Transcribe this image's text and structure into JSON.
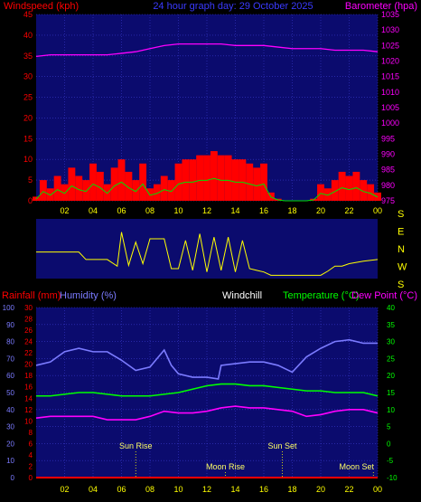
{
  "header": {
    "windspeed_label": "Windspeed (kph)",
    "title": "24 hour graph day: 29 October 2025",
    "barometer_label": "Barometer (hpa)"
  },
  "mid_header": {
    "rainfall_label": "Rainfall (mm)",
    "humidity_label": "Humidity (%)",
    "windchill_label": "Windchill",
    "temperature_label": "Temperature (°C)",
    "dewpoint_label": "Dew Point (°C)"
  },
  "colors": {
    "background": "#000000",
    "plot_background": "#0b0b6e",
    "grid": "#3a3acc",
    "wind_gust": "#ff0000",
    "wind_avg": "#00e000",
    "wind_lull": "#ffffff",
    "barometer": "#ff00ff",
    "wind_direction": "#ffff00",
    "humidity": "#7b7bff",
    "temperature": "#00ff00",
    "dew_point": "#ff00ff",
    "rainfall": "#ff0000",
    "left_axis": "#ff0000",
    "right_axis_top": "#ff00ff",
    "right_axis_bottom": "#00ff00",
    "humidity_axis": "#7b7bff",
    "x_ticks": "#ffff00",
    "events": "#ffff00"
  },
  "x_ticks": [
    "02",
    "04",
    "06",
    "08",
    "10",
    "12",
    "14",
    "16",
    "18",
    "20",
    "22",
    "00"
  ],
  "chart_data": [
    {
      "type": "area",
      "ylabel": "Windspeed (kph)",
      "y2label": "Barometer (hpa)",
      "ylim": [
        0,
        45
      ],
      "yticks": [
        0,
        5,
        10,
        15,
        20,
        25,
        30,
        35,
        40,
        45
      ],
      "y2lim": [
        975,
        1035
      ],
      "y2ticks": [
        975,
        980,
        985,
        990,
        995,
        1000,
        1005,
        1010,
        1015,
        1020,
        1025,
        1030,
        1035
      ],
      "xlim": [
        0,
        24
      ],
      "grid": true,
      "series": [
        {
          "name": "Windspeed (kph)",
          "axis": "left",
          "x": [
            0,
            0.5,
            1,
            1.5,
            2,
            2.5,
            3,
            3.5,
            4,
            4.5,
            5,
            5.5,
            6,
            6.5,
            7,
            7.5,
            8,
            8.5,
            9,
            9.5,
            10,
            10.5,
            11,
            11.5,
            12,
            12.5,
            13,
            13.5,
            14,
            14.5,
            15,
            15.5,
            16,
            16.5,
            17,
            17.5,
            18,
            18.5,
            19,
            19.5,
            20,
            20.5,
            21,
            21.5,
            22,
            22.5,
            23,
            23.5,
            24
          ],
          "values": [
            1,
            5,
            3,
            6,
            4,
            8,
            6,
            5,
            9,
            7,
            4,
            8,
            10,
            7,
            5,
            9,
            3,
            4,
            6,
            5,
            9,
            10,
            10,
            11,
            11,
            12,
            11,
            11,
            10,
            10,
            9,
            8,
            9,
            2,
            0.5,
            0,
            0,
            0,
            0,
            0.5,
            4,
            3,
            5,
            7,
            6,
            7,
            5,
            4,
            2
          ]
        },
        {
          "name": "Barometer (hpa)",
          "axis": "right",
          "x": [
            0,
            1,
            2,
            3,
            4,
            5,
            6,
            7,
            8,
            9,
            10,
            11,
            12,
            13,
            14,
            15,
            16,
            17,
            18,
            19,
            20,
            21,
            22,
            23,
            24
          ],
          "values": [
            1021.5,
            1022,
            1022,
            1022,
            1022,
            1022,
            1022.5,
            1023,
            1024,
            1025,
            1025.5,
            1025.5,
            1025.5,
            1025.5,
            1025,
            1025,
            1025,
            1024.5,
            1024,
            1024,
            1024,
            1023.5,
            1023.5,
            1023.5,
            1023
          ]
        }
      ]
    },
    {
      "type": "line",
      "yticks": [
        "S",
        "E",
        "N",
        "W",
        "S"
      ],
      "ylim": [
        0,
        360
      ],
      "xlim": [
        0,
        24
      ],
      "grid": false,
      "series": [
        {
          "name": "Wind direction",
          "x": [
            0,
            1,
            1.5,
            2,
            3,
            3.5,
            4,
            5,
            5.7,
            6,
            6.5,
            7,
            7.5,
            8,
            8.5,
            9,
            9.5,
            10,
            10.5,
            11,
            11.5,
            12,
            12.5,
            13,
            13.5,
            14,
            14.5,
            15,
            15.5,
            16,
            16.5,
            17,
            17.5,
            18,
            19,
            20,
            20.5,
            21,
            21.5,
            22,
            23,
            24
          ],
          "values": [
            160,
            160,
            160,
            160,
            160,
            115,
            115,
            115,
            75,
            280,
            80,
            220,
            90,
            240,
            240,
            240,
            60,
            60,
            230,
            50,
            270,
            40,
            250,
            50,
            250,
            40,
            230,
            60,
            50,
            40,
            20,
            20,
            20,
            20,
            20,
            20,
            45,
            75,
            75,
            90,
            105,
            115
          ]
        }
      ]
    },
    {
      "type": "line",
      "ylim": [
        0,
        100
      ],
      "yticks": [
        0,
        10,
        20,
        30,
        40,
        50,
        60,
        70,
        80,
        90,
        100
      ],
      "y2lim": [
        -10,
        40
      ],
      "y2ticks": [
        -10,
        -5,
        0,
        5,
        10,
        15,
        20,
        25,
        30,
        35,
        40
      ],
      "rain_ticks": [
        0,
        2,
        4,
        6,
        8,
        10,
        12,
        14,
        16,
        18,
        20,
        22,
        24,
        26,
        28,
        30
      ],
      "xlim": [
        0,
        24
      ],
      "grid": true,
      "series": [
        {
          "name": "Humidity (%)",
          "axis": "left",
          "x": [
            0,
            1,
            2,
            3,
            4,
            5,
            6,
            7,
            8,
            8.5,
            9,
            9.5,
            10,
            11,
            12,
            12.8,
            13,
            14,
            15,
            16,
            17,
            18,
            19,
            20,
            21,
            22,
            23,
            24
          ],
          "values": [
            66,
            68,
            74,
            76,
            74,
            74,
            69,
            63,
            65,
            70,
            75,
            66,
            61,
            59,
            59,
            58,
            66,
            67,
            68,
            68,
            66,
            62,
            71,
            76,
            80,
            81,
            79,
            79
          ]
        },
        {
          "name": "Temperature (°C)",
          "axis": "right",
          "x": [
            0,
            1,
            2,
            3,
            4,
            5,
            6,
            7,
            8,
            9,
            10,
            11,
            12,
            13,
            14,
            15,
            16,
            17,
            18,
            19,
            20,
            21,
            22,
            23,
            24
          ],
          "values": [
            14,
            14,
            14.5,
            15,
            15,
            14.5,
            14,
            14,
            14,
            14.5,
            15,
            16,
            17,
            17.5,
            17.5,
            17,
            17,
            16.5,
            16,
            15.5,
            15.5,
            15,
            15,
            15,
            14
          ]
        },
        {
          "name": "Dew Point (°C)",
          "axis": "right",
          "x": [
            0,
            1,
            2,
            3,
            4,
            5,
            6,
            7,
            8,
            9,
            10,
            11,
            12,
            13,
            14,
            15,
            16,
            17,
            18,
            19,
            20,
            21,
            22,
            23,
            24
          ],
          "values": [
            7.5,
            8,
            8,
            8,
            8,
            7,
            7,
            7,
            8,
            9.5,
            9,
            9,
            9.5,
            10.5,
            11,
            10.5,
            10.5,
            10,
            9.5,
            8,
            8.5,
            9.5,
            10,
            10,
            9
          ]
        },
        {
          "name": "Rainfall (mm)",
          "axis": "rain",
          "x": [
            0,
            24
          ],
          "values": [
            0,
            0
          ]
        }
      ],
      "annotations": [
        {
          "label": "Sun Rise",
          "x": 7.0
        },
        {
          "label": "Moon Rise",
          "x": 13.3
        },
        {
          "label": "Sun Set",
          "x": 17.3
        },
        {
          "label": "Moon Set",
          "x": 23.7
        }
      ]
    }
  ]
}
